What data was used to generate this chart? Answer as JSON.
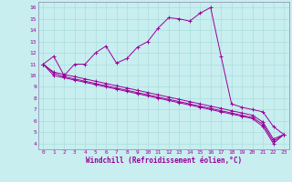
{
  "xlabel": "Windchill (Refroidissement éolien,°C)",
  "bg_color": "#c8eef0",
  "line_color": "#990099",
  "grid_color": "#aadddd",
  "border_color": "#8888aa",
  "xlim": [
    -0.5,
    23.5
  ],
  "ylim": [
    3.5,
    16.5
  ],
  "xticks": [
    0,
    1,
    2,
    3,
    4,
    5,
    6,
    7,
    8,
    9,
    10,
    11,
    12,
    13,
    14,
    15,
    16,
    17,
    18,
    19,
    20,
    21,
    22,
    23
  ],
  "yticks": [
    4,
    5,
    6,
    7,
    8,
    9,
    10,
    11,
    12,
    13,
    14,
    15,
    16
  ],
  "series": [
    [
      11.0,
      11.7,
      10.0,
      11.0,
      11.0,
      12.0,
      12.6,
      11.1,
      11.5,
      12.5,
      13.0,
      14.2,
      15.1,
      15.0,
      14.8,
      15.5,
      16.0,
      11.7,
      7.5,
      7.2,
      7.0,
      6.8,
      5.5,
      4.8
    ],
    [
      11.0,
      10.0,
      9.8,
      9.6,
      9.4,
      9.2,
      9.0,
      8.8,
      8.6,
      8.4,
      8.2,
      8.0,
      7.8,
      7.6,
      7.4,
      7.2,
      7.0,
      6.8,
      6.6,
      6.4,
      6.2,
      5.5,
      4.0,
      4.8
    ],
    [
      11.0,
      10.2,
      9.9,
      9.7,
      9.5,
      9.3,
      9.1,
      8.9,
      8.7,
      8.5,
      8.3,
      8.1,
      7.9,
      7.7,
      7.5,
      7.3,
      7.1,
      6.9,
      6.7,
      6.5,
      6.3,
      5.7,
      4.2,
      4.8
    ],
    [
      11.0,
      10.3,
      10.1,
      9.9,
      9.7,
      9.5,
      9.3,
      9.1,
      8.9,
      8.7,
      8.5,
      8.3,
      8.1,
      7.9,
      7.7,
      7.5,
      7.3,
      7.1,
      6.9,
      6.7,
      6.5,
      5.9,
      4.4,
      4.8
    ]
  ]
}
